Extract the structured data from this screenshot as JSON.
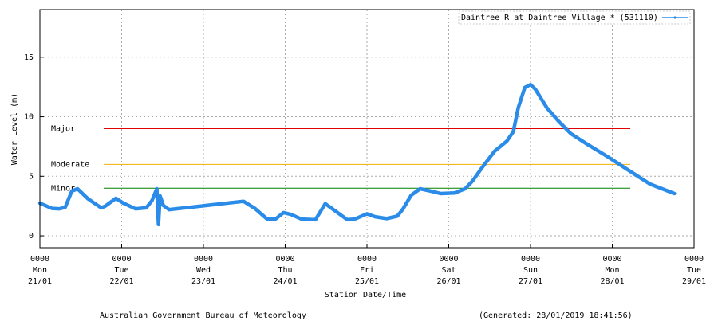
{
  "chart_data": {
    "type": "line",
    "ylabel": "Water Level (m)",
    "xlabel": "Station Date/Time",
    "footer_left": "Australian Government Bureau of Meteorology",
    "footer_right": "(Generated: 28/01/2019 18:41:56)",
    "ylim": [
      -1,
      19
    ],
    "yticks": [
      0,
      5,
      10,
      15
    ],
    "xlim": [
      0,
      8
    ],
    "xticks": [
      {
        "value": 0,
        "label": [
          "0000",
          "Mon",
          "21/01"
        ]
      },
      {
        "value": 1,
        "label": [
          "0000",
          "Tue",
          "22/01"
        ]
      },
      {
        "value": 2,
        "label": [
          "0000",
          "Wed",
          "23/01"
        ]
      },
      {
        "value": 3,
        "label": [
          "0000",
          "Thu",
          "24/01"
        ]
      },
      {
        "value": 4,
        "label": [
          "0000",
          "Fri",
          "25/01"
        ]
      },
      {
        "value": 5,
        "label": [
          "0000",
          "Sat",
          "26/01"
        ]
      },
      {
        "value": 6,
        "label": [
          "0000",
          "Sun",
          "27/01"
        ]
      },
      {
        "value": 7,
        "label": [
          "0000",
          "Mon",
          "28/01"
        ]
      },
      {
        "value": 8,
        "label": [
          "0000",
          "Tue",
          "29/01"
        ]
      }
    ],
    "grid": true,
    "legend": "top-right",
    "thresholds": [
      {
        "label": "Major",
        "value": 9,
        "color": "#e00000",
        "x": [
          0.78,
          7.22
        ]
      },
      {
        "label": "Moderate",
        "value": 6,
        "color": "#f0b000",
        "x": [
          0.78,
          7.22
        ]
      },
      {
        "label": "Minor",
        "value": 4,
        "color": "#008000",
        "x": [
          0.78,
          7.22
        ]
      }
    ],
    "series": [
      {
        "name": "Daintree R at Daintree Village * (531110)",
        "color": "#2a8ce8",
        "x": [
          0,
          0.15,
          0.24,
          0.31,
          0.39,
          0.46,
          0.59,
          0.75,
          0.8,
          0.93,
          1.02,
          1.17,
          1.3,
          1.37,
          1.43,
          1.45,
          1.47,
          1.51,
          1.58,
          2.49,
          2.63,
          2.78,
          2.88,
          2.98,
          3.07,
          3.2,
          3.37,
          3.49,
          3.59,
          3.76,
          3.85,
          4.0,
          4.1,
          4.24,
          4.37,
          4.44,
          4.54,
          4.65,
          4.78,
          4.9,
          5.07,
          5.2,
          5.29,
          5.41,
          5.56,
          5.71,
          5.79,
          5.85,
          5.93,
          6.0,
          6.06,
          6.2,
          6.34,
          6.49,
          6.68,
          6.93,
          7.2,
          7.46,
          7.76
        ],
        "values": [
          2.74,
          2.3,
          2.27,
          2.4,
          3.75,
          3.95,
          3.1,
          2.35,
          2.5,
          3.15,
          2.75,
          2.27,
          2.35,
          2.95,
          3.95,
          0.95,
          3.35,
          2.55,
          2.2,
          2.9,
          2.3,
          1.4,
          1.4,
          1.95,
          1.8,
          1.4,
          1.35,
          2.7,
          2.2,
          1.35,
          1.4,
          1.85,
          1.6,
          1.45,
          1.65,
          2.25,
          3.4,
          3.95,
          3.75,
          3.55,
          3.6,
          3.95,
          4.6,
          5.75,
          7.1,
          7.95,
          8.75,
          10.75,
          12.45,
          12.7,
          12.3,
          10.75,
          9.65,
          8.6,
          7.75,
          6.7,
          5.5,
          4.35,
          3.55
        ]
      }
    ]
  }
}
